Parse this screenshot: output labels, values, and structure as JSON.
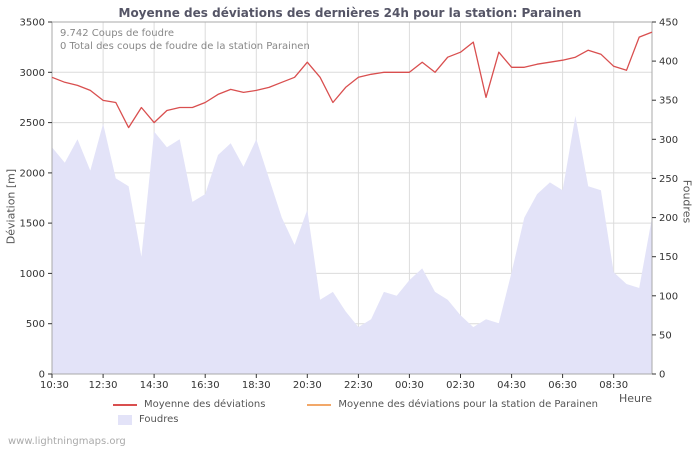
{
  "title": "Moyenne des déviations des dernières 24h pour la station: Parainen",
  "annotation": {
    "line1": "9.742  Coups de foudre",
    "line2": "0 Total des coups de foudre de la station Parainen"
  },
  "axes": {
    "left_label": "Déviation [m]",
    "right_label": "Foudres",
    "x_label": "Heure"
  },
  "legend": {
    "deviation": "Moyenne des déviations",
    "station": "Moyenne des déviations pour la station de Parainen",
    "foudres": "Foudres"
  },
  "watermark": "www.lightningmaps.org",
  "colors": {
    "deviation_line": "#d94f4f",
    "station_line": "#f2a869",
    "foudres_fill": "#e3e3f8",
    "grid": "#dcdcdc",
    "axis": "#aaaaaa",
    "tick_text": "#333333"
  },
  "chart_data": {
    "type": "line+area",
    "x_unit": "hours from 10:30",
    "x_hours": [
      0,
      0.5,
      1,
      1.5,
      2,
      2.5,
      3,
      3.5,
      4,
      4.5,
      5,
      5.5,
      6,
      6.5,
      7,
      7.5,
      8,
      8.5,
      9,
      9.5,
      10,
      10.5,
      11,
      11.5,
      12,
      12.5,
      13,
      13.5,
      14,
      14.5,
      15,
      15.5,
      16,
      16.5,
      17,
      17.5,
      18,
      18.5,
      19,
      19.5,
      20,
      20.5,
      21,
      21.5,
      22,
      22.5,
      23,
      23.5
    ],
    "x_tick_hours": [
      0,
      2,
      4,
      6,
      8,
      10,
      12,
      14,
      16,
      18,
      20,
      22
    ],
    "x_tick_labels": [
      "10:30",
      "12:30",
      "14:30",
      "16:30",
      "18:30",
      "20:30",
      "22:30",
      "00:30",
      "02:30",
      "04:30",
      "06:30",
      "08:30"
    ],
    "left_axis": {
      "min": 0,
      "max": 3500,
      "step": 500,
      "tick_labels": [
        "0",
        "500",
        "1000",
        "1500",
        "2000",
        "2500",
        "3000",
        "3500"
      ]
    },
    "right_axis": {
      "min": 0,
      "max": 450,
      "step": 50,
      "tick_labels": [
        "0",
        "50",
        "100",
        "150",
        "200",
        "250",
        "300",
        "350",
        "400",
        "450"
      ]
    },
    "series": [
      {
        "name": "Moyenne des déviations",
        "type": "line",
        "axis": "left",
        "color": "#d94f4f",
        "values": [
          2950,
          2900,
          2870,
          2820,
          2720,
          2700,
          2450,
          2650,
          2500,
          2620,
          2650,
          2650,
          2700,
          2780,
          2830,
          2800,
          2820,
          2850,
          2900,
          2950,
          3100,
          2950,
          2700,
          2850,
          2950,
          2980,
          3000,
          3000,
          3000,
          3100,
          3000,
          3150,
          3200,
          3300,
          2750,
          3200,
          3050,
          3050,
          3080,
          3100,
          3120,
          3150,
          3220,
          3180,
          3060,
          3020,
          3350,
          3400
        ]
      },
      {
        "name": "Moyenne des déviations pour la station de Parainen",
        "type": "line",
        "axis": "left",
        "color": "#f2a869",
        "values": []
      },
      {
        "name": "Foudres",
        "type": "area",
        "axis": "right",
        "color": "#e3e3f8",
        "values": [
          290,
          270,
          300,
          260,
          320,
          250,
          240,
          150,
          310,
          290,
          300,
          220,
          230,
          280,
          295,
          265,
          300,
          250,
          200,
          165,
          210,
          95,
          105,
          80,
          60,
          70,
          105,
          100,
          120,
          135,
          105,
          95,
          75,
          60,
          70,
          65,
          130,
          200,
          230,
          245,
          235,
          330,
          240,
          235,
          130,
          115,
          110,
          200
        ]
      }
    ],
    "totals": {
      "coups_de_foudre": "9.742",
      "station_coups_de_foudre": "0"
    }
  }
}
